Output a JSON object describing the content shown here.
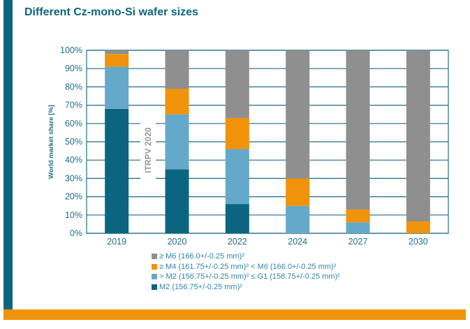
{
  "title": "Different Cz-mono-Si wafer sizes",
  "chart_data": {
    "type": "bar",
    "stacked": true,
    "title": "Different Cz-mono-Si wafer sizes",
    "ylabel": "World market share [%]",
    "xlabel": "",
    "ylim": [
      0,
      100
    ],
    "yticks": [
      "0%",
      "10%",
      "20%",
      "30%",
      "40%",
      "50%",
      "60%",
      "70%",
      "80%",
      "90%",
      "100%"
    ],
    "categories": [
      "2019",
      "2020",
      "2022",
      "2024",
      "2027",
      "2030"
    ],
    "annotation": "ITRPV 2020",
    "series": [
      {
        "name": "M2 (156.75+/-0.25 mm)²",
        "color": "#0b6580",
        "values": [
          68,
          35,
          16,
          0,
          0,
          0
        ]
      },
      {
        "name": "> M2 (156.75+/-0.25 mm)² ≤ G1 (158.75+/-0.25 mm)²",
        "color": "#64a9c9",
        "values": [
          23,
          30,
          30,
          15,
          6,
          0
        ]
      },
      {
        "name": "≥ M4 (161.75+/-0.25 mm)² < M6 (166.0+/-0.25 mm)²",
        "color": "#f0930a",
        "values": [
          7,
          14,
          17,
          15,
          7,
          6.5
        ]
      },
      {
        "name": "≥ M6 (166.0+/-0.25 mm)²",
        "color": "#8f8f8f",
        "values": [
          2,
          21,
          37,
          70,
          87,
          93.5
        ]
      }
    ],
    "legend_order": [
      3,
      2,
      1,
      0
    ],
    "legend_position": "bottom"
  }
}
